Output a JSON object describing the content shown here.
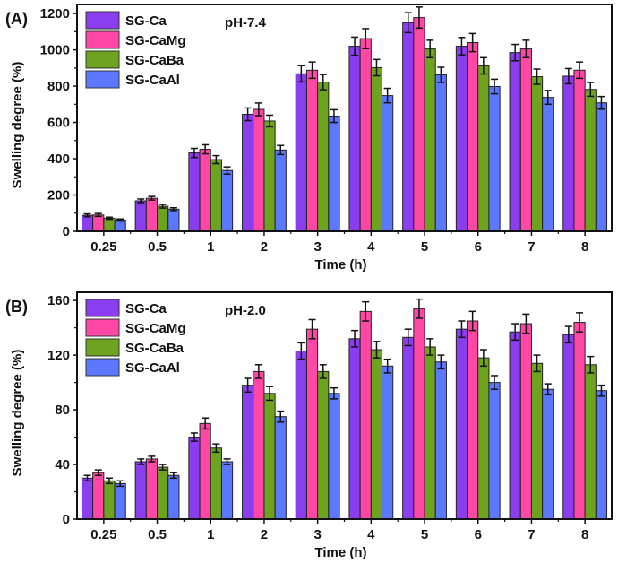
{
  "chart_data": [
    {
      "type": "bar",
      "panel_label": "(A)",
      "annotation": "pH-7.4",
      "xlabel": "Time (h)",
      "ylabel": "Swelling degree (%)",
      "ylim": [
        0,
        1250
      ],
      "yticks": [
        0,
        200,
        400,
        600,
        800,
        1000,
        1200
      ],
      "categories": [
        "0.25",
        "0.5",
        "1",
        "2",
        "3",
        "4",
        "5",
        "6",
        "7",
        "8"
      ],
      "legend_position": "top-left",
      "series": [
        {
          "name": "SG-Ca",
          "color": "#8B3DF0",
          "values": [
            88,
            168,
            432,
            645,
            868,
            1020,
            1150,
            1020,
            985,
            855
          ],
          "errors": [
            8,
            10,
            25,
            35,
            45,
            50,
            55,
            48,
            45,
            42
          ]
        },
        {
          "name": "SG-CaMg",
          "color": "#FF47A6",
          "values": [
            90,
            182,
            452,
            672,
            888,
            1062,
            1178,
            1040,
            1005,
            888
          ],
          "errors": [
            8,
            10,
            25,
            35,
            45,
            55,
            58,
            50,
            48,
            45
          ]
        },
        {
          "name": "SG-CaBa",
          "color": "#6DA31E",
          "values": [
            72,
            138,
            395,
            608,
            822,
            902,
            1005,
            912,
            852,
            782
          ],
          "errors": [
            6,
            10,
            22,
            32,
            42,
            45,
            48,
            45,
            42,
            38
          ]
        },
        {
          "name": "SG-CaAl",
          "color": "#5B78FF",
          "values": [
            62,
            122,
            335,
            448,
            635,
            748,
            862,
            798,
            738,
            708
          ],
          "errors": [
            6,
            8,
            20,
            25,
            35,
            40,
            42,
            40,
            38,
            35
          ]
        }
      ]
    },
    {
      "type": "bar",
      "panel_label": "(B)",
      "annotation": "pH-2.0",
      "xlabel": "Time (h)",
      "ylabel": "Swelling degree (%)",
      "ylim": [
        0,
        166
      ],
      "yticks": [
        0,
        40,
        80,
        120,
        160
      ],
      "categories": [
        "0.25",
        "0.5",
        "1",
        "2",
        "3",
        "4",
        "5",
        "6",
        "7",
        "8"
      ],
      "legend_position": "top-left",
      "series": [
        {
          "name": "SG-Ca",
          "color": "#8B3DF0",
          "values": [
            30,
            42,
            60,
            98,
            123,
            132,
            133,
            139,
            137,
            135
          ],
          "errors": [
            2,
            2,
            3,
            5,
            6,
            6,
            6,
            6,
            6,
            6
          ]
        },
        {
          "name": "SG-CaMg",
          "color": "#FF47A6",
          "values": [
            34,
            44,
            70,
            108,
            139,
            152,
            154,
            145,
            143,
            144
          ],
          "errors": [
            2,
            2,
            4,
            5,
            7,
            7,
            7,
            7,
            7,
            7
          ]
        },
        {
          "name": "SG-CaBa",
          "color": "#6DA31E",
          "values": [
            28,
            38,
            52,
            92,
            108,
            124,
            126,
            118,
            114,
            113
          ],
          "errors": [
            2,
            2,
            3,
            5,
            5,
            6,
            6,
            6,
            6,
            6
          ]
        },
        {
          "name": "SG-CaAl",
          "color": "#5B78FF",
          "values": [
            26,
            32,
            42,
            75,
            92,
            112,
            115,
            100,
            95,
            94
          ],
          "errors": [
            2,
            2,
            2,
            4,
            4,
            5,
            5,
            5,
            4,
            4
          ]
        }
      ]
    }
  ]
}
